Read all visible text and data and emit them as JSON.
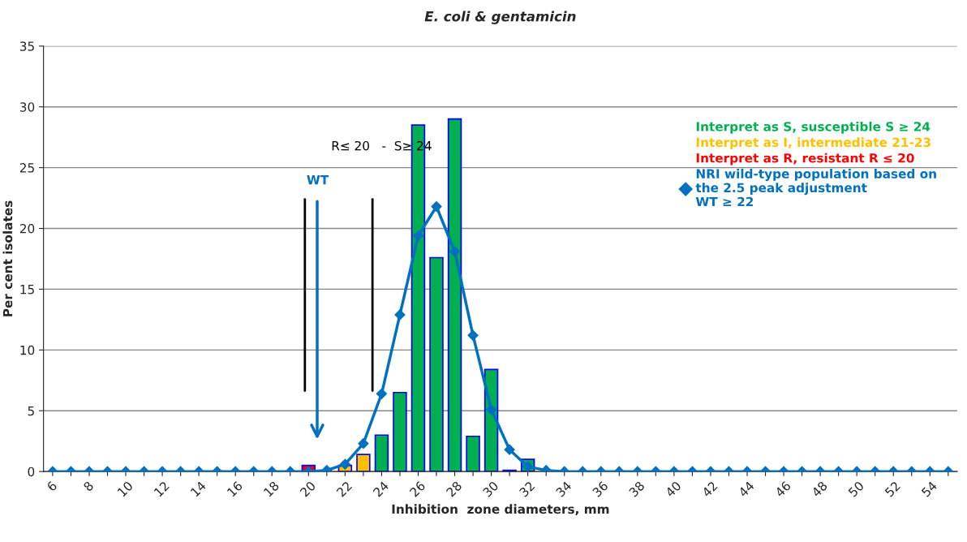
{
  "chart_data": {
    "type": "bar",
    "title": "E. coli & gentamicin",
    "xlabel": "Inhibition  zone diameters, mm",
    "ylabel": "Per cent isolates",
    "x": [
      6,
      7,
      8,
      9,
      10,
      11,
      12,
      13,
      14,
      15,
      16,
      17,
      18,
      19,
      20,
      21,
      22,
      23,
      24,
      25,
      26,
      27,
      28,
      29,
      30,
      31,
      32,
      33,
      34,
      35,
      36,
      37,
      38,
      39,
      40,
      41,
      42,
      43,
      44,
      45,
      46,
      47,
      48,
      49,
      50,
      51,
      52,
      53,
      54,
      55
    ],
    "series": [
      {
        "name": "Interpret as S, susceptible S ≥ 24",
        "color": "#00b050",
        "values": [
          null,
          null,
          null,
          null,
          null,
          null,
          null,
          null,
          null,
          null,
          null,
          null,
          null,
          null,
          null,
          null,
          null,
          null,
          3.0,
          6.5,
          28.5,
          17.6,
          29.0,
          2.9,
          8.4,
          0.1,
          1.0,
          null,
          null,
          null,
          null,
          null,
          null,
          null,
          null,
          null,
          null,
          null,
          null,
          null,
          null,
          null,
          null,
          null,
          null,
          null,
          null,
          null,
          null,
          null
        ]
      },
      {
        "name": "Interpret as I, intermediate 21-23",
        "color": "#ffc000",
        "values": [
          null,
          null,
          null,
          null,
          null,
          null,
          null,
          null,
          null,
          null,
          null,
          null,
          null,
          null,
          null,
          null,
          0.5,
          1.4,
          null,
          null,
          null,
          null,
          null,
          null,
          null,
          null,
          null,
          null,
          null,
          null,
          null,
          null,
          null,
          null,
          null,
          null,
          null,
          null,
          null,
          null,
          null,
          null,
          null,
          null,
          null,
          null,
          null,
          null,
          null,
          null
        ]
      },
      {
        "name": "Interpret as R, resistant R ≤ 20",
        "color": "#ff0000",
        "values": [
          null,
          null,
          null,
          null,
          null,
          null,
          null,
          null,
          null,
          null,
          null,
          null,
          null,
          null,
          0.5,
          null,
          null,
          null,
          null,
          null,
          null,
          null,
          null,
          null,
          null,
          null,
          null,
          null,
          null,
          null,
          null,
          null,
          null,
          null,
          null,
          null,
          null,
          null,
          null,
          null,
          null,
          null,
          null,
          null,
          null,
          null,
          null,
          null,
          null,
          null
        ]
      },
      {
        "name": "NRI wild-type population based on\nthe 2.5 peak adjustment\nWT ≥ 22",
        "type": "line",
        "color": "#0070c0",
        "marker": "diamond",
        "values": [
          0,
          0,
          0,
          0,
          0,
          0,
          0,
          0,
          0,
          0,
          0,
          0,
          0,
          0,
          0,
          0.1,
          0.6,
          2.3,
          6.4,
          12.9,
          19.4,
          21.8,
          18.1,
          11.2,
          5.1,
          1.8,
          0.4,
          0.1,
          0,
          0,
          0,
          0,
          0,
          0,
          0,
          0,
          0,
          0,
          0,
          0,
          0,
          0,
          0,
          0,
          0,
          0,
          0,
          0,
          0,
          0
        ]
      }
    ],
    "xlim": [
      5.5,
      55.5
    ],
    "xticks": [
      6,
      {
        "value": 7,
        "label": null
      },
      8,
      {
        "value": 9,
        "label": null
      },
      10,
      {
        "value": 11,
        "label": null
      },
      12,
      {
        "value": 13,
        "label": null
      },
      14,
      {
        "value": 15,
        "label": null
      },
      16,
      {
        "value": 17,
        "label": null
      },
      18,
      {
        "value": 19,
        "label": null
      },
      20,
      {
        "value": 21,
        "label": null
      },
      22,
      {
        "value": 23,
        "label": null
      },
      24,
      {
        "value": 25,
        "label": null
      },
      26,
      {
        "value": 27,
        "label": null
      },
      28,
      {
        "value": 29,
        "label": null
      },
      30,
      {
        "value": 31,
        "label": null
      },
      32,
      {
        "value": 33,
        "label": null
      },
      34,
      {
        "value": 35,
        "label": null
      },
      36,
      {
        "value": 37,
        "label": null
      },
      38,
      {
        "value": 39,
        "label": null
      },
      40,
      {
        "value": 41,
        "label": null
      },
      42,
      {
        "value": 43,
        "label": null
      },
      44,
      {
        "value": 45,
        "label": null
      },
      46,
      {
        "value": 47,
        "label": null
      },
      48,
      {
        "value": 49,
        "label": null
      },
      50,
      {
        "value": 51,
        "label": null
      },
      52,
      {
        "value": 53,
        "label": null
      },
      54,
      {
        "value": 55,
        "label": null
      }
    ],
    "ylim": [
      0,
      35
    ],
    "yticks": [
      0,
      5,
      10,
      15,
      20,
      25,
      30,
      35
    ],
    "grid": "y",
    "legend": "right",
    "ref_lines": [
      {
        "axis": "x",
        "value": 19.8,
        "color": "#000000"
      },
      {
        "axis": "x",
        "value": 23.5,
        "color": "#000000"
      }
    ],
    "annotations": [
      "R≤ 20   -  S≥ 24",
      "WT"
    ]
  }
}
